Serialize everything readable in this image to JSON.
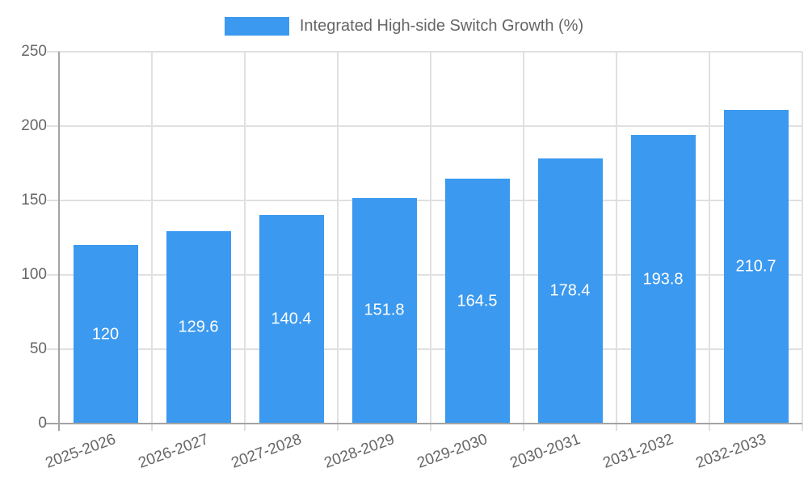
{
  "legend": {
    "label": "Integrated High-side Switch Growth (%)",
    "swatch_color": "#3b99ef"
  },
  "chart_data": {
    "type": "bar",
    "title": "Integrated High-side Switch Growth (%)",
    "categories": [
      "2025-2026",
      "2026-2027",
      "2027-2028",
      "2028-2029",
      "2029-2030",
      "2030-2031",
      "2031-2032",
      "2032-2033"
    ],
    "values": [
      120,
      129.6,
      140.4,
      151.8,
      164.5,
      178.4,
      193.8,
      210.7
    ],
    "value_labels": [
      "120",
      "129.6",
      "140.4",
      "151.8",
      "164.5",
      "178.4",
      "193.8",
      "210.7"
    ],
    "xlabel": "",
    "ylabel": "",
    "ylim": [
      0,
      250
    ],
    "yticks": [
      0,
      50,
      100,
      150,
      200,
      250
    ],
    "grid": true,
    "legend_position": "top",
    "bar_color": "#3b99ef",
    "value_label_color": "#ffffff",
    "tick_label_color": "#666666",
    "grid_color": "#e0e0e0",
    "axis_color": "#a3a3a3"
  }
}
